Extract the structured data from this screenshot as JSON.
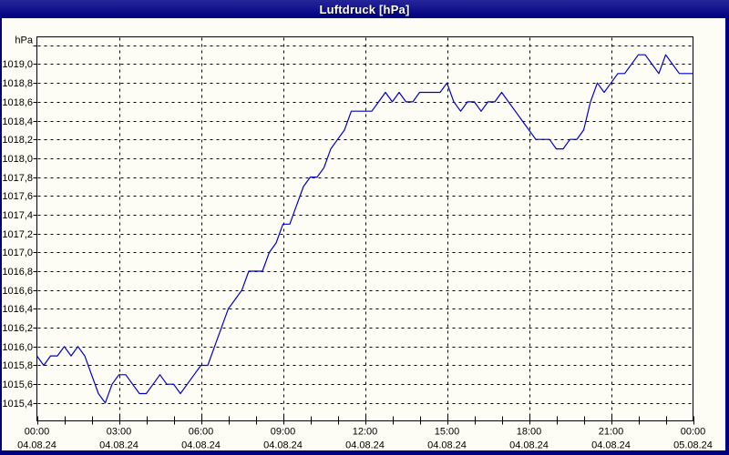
{
  "window": {
    "title": "Luftdruck [hPa]",
    "colors": {
      "frame": "#000080",
      "panel_bg": "#fdfdf5",
      "line": "#0000c8",
      "grid": "#000000",
      "text": "#000000",
      "title_text": "#ffffff"
    }
  },
  "chart_data": {
    "type": "line",
    "title": "Luftdruck [hPa]",
    "ylabel": "hPa",
    "xlabel": "",
    "grid": true,
    "legend": "none",
    "ylim": [
      1015.21,
      1019.29
    ],
    "xlim_hours": [
      0,
      24
    ],
    "minor_x_tick_hours": 1,
    "y_ticks": [
      {
        "v": 1015.4,
        "label": "1015,4"
      },
      {
        "v": 1015.6,
        "label": "1015,6"
      },
      {
        "v": 1015.8,
        "label": "1015,8"
      },
      {
        "v": 1016.0,
        "label": "1016,0"
      },
      {
        "v": 1016.2,
        "label": "1016,2"
      },
      {
        "v": 1016.4,
        "label": "1016,4"
      },
      {
        "v": 1016.6,
        "label": "1016,6"
      },
      {
        "v": 1016.8,
        "label": "1016,8"
      },
      {
        "v": 1017.0,
        "label": "1017,0"
      },
      {
        "v": 1017.2,
        "label": "1017,2"
      },
      {
        "v": 1017.4,
        "label": "1017,4"
      },
      {
        "v": 1017.6,
        "label": "1017,6"
      },
      {
        "v": 1017.8,
        "label": "1017,8"
      },
      {
        "v": 1018.0,
        "label": "1018,0"
      },
      {
        "v": 1018.2,
        "label": "1018,2"
      },
      {
        "v": 1018.4,
        "label": "1018,4"
      },
      {
        "v": 1018.6,
        "label": "1018,6"
      },
      {
        "v": 1018.8,
        "label": "1018,8"
      },
      {
        "v": 1019.0,
        "label": "1019,0"
      },
      {
        "v": 1019.2,
        "label": ""
      }
    ],
    "x_ticks": [
      {
        "hour": 0,
        "time": "00:00",
        "date": "04.08.24"
      },
      {
        "hour": 3,
        "time": "03:00",
        "date": "04.08.24"
      },
      {
        "hour": 6,
        "time": "06:00",
        "date": "04.08.24"
      },
      {
        "hour": 9,
        "time": "09:00",
        "date": "04.08.24"
      },
      {
        "hour": 12,
        "time": "12:00",
        "date": "04.08.24"
      },
      {
        "hour": 15,
        "time": "15:00",
        "date": "04.08.24"
      },
      {
        "hour": 18,
        "time": "18:00",
        "date": "04.08.24"
      },
      {
        "hour": 21,
        "time": "21:00",
        "date": "04.08.24"
      },
      {
        "hour": 24,
        "time": "00:00",
        "date": "05.08.24"
      }
    ],
    "series": [
      {
        "name": "Luftdruck",
        "start_hour": 0,
        "step_hours": 0.25,
        "values": [
          1015.9,
          1015.8,
          1015.9,
          1015.9,
          1016.0,
          1015.9,
          1016.0,
          1015.9,
          1015.7,
          1015.5,
          1015.4,
          1015.6,
          1015.7,
          1015.7,
          1015.6,
          1015.5,
          1015.5,
          1015.6,
          1015.7,
          1015.6,
          1015.6,
          1015.5,
          1015.6,
          1015.7,
          1015.8,
          1015.8,
          1016.0,
          1016.2,
          1016.4,
          1016.5,
          1016.6,
          1016.8,
          1016.8,
          1016.8,
          1017.0,
          1017.1,
          1017.3,
          1017.3,
          1017.5,
          1017.7,
          1017.8,
          1017.8,
          1017.9,
          1018.1,
          1018.2,
          1018.3,
          1018.5,
          1018.5,
          1018.5,
          1018.5,
          1018.6,
          1018.7,
          1018.6,
          1018.7,
          1018.6,
          1018.6,
          1018.7,
          1018.7,
          1018.7,
          1018.7,
          1018.8,
          1018.6,
          1018.5,
          1018.6,
          1018.6,
          1018.5,
          1018.6,
          1018.6,
          1018.7,
          1018.6,
          1018.5,
          1018.4,
          1018.3,
          1018.2,
          1018.2,
          1018.2,
          1018.1,
          1018.1,
          1018.2,
          1018.2,
          1018.3,
          1018.6,
          1018.8,
          1018.7,
          1018.8,
          1018.9,
          1018.9,
          1019.0,
          1019.1,
          1019.1,
          1019.0,
          1018.9,
          1019.1,
          1019.0,
          1018.9,
          1018.9,
          1018.9
        ]
      }
    ]
  }
}
